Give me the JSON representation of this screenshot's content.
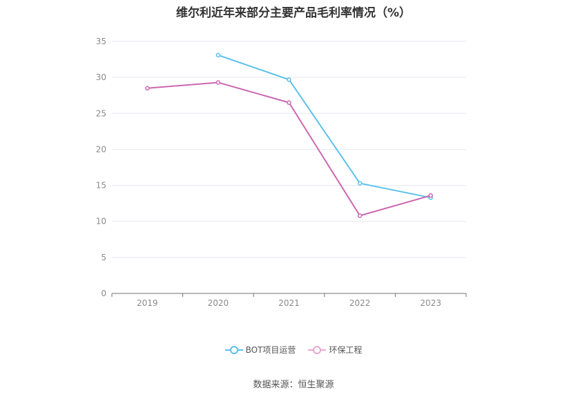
{
  "chart_data": {
    "type": "line",
    "title": "维尔利近年来部分主要产品毛利率情况（%）",
    "categories": [
      "2019",
      "2020",
      "2021",
      "2022",
      "2023"
    ],
    "ylim": [
      0,
      35
    ],
    "yticks": [
      0,
      5,
      10,
      15,
      20,
      25,
      30,
      35
    ],
    "grid": true,
    "legend_position": "bottom",
    "series": [
      {
        "name": "BOT项目运营",
        "color": "#5bc0eb",
        "values": [
          null,
          33.1,
          29.7,
          15.3,
          13.3
        ]
      },
      {
        "name": "环保工程",
        "color": "#cc66b0",
        "values": [
          28.5,
          29.3,
          26.5,
          10.8,
          13.6
        ]
      }
    ]
  },
  "legend_colors": [
    "#5bc0eb",
    "#e8a6d2"
  ],
  "source": "数据来源：恒生聚源"
}
